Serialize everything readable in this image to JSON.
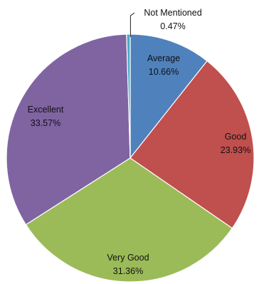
{
  "chart_data": {
    "type": "pie",
    "title": "",
    "colors": {
      "Average": "#4f81bd",
      "Good": "#c0504d",
      "Very Good": "#9bbb59",
      "Excellent": "#8064a2",
      "Not Mentioned": "#4bacc6"
    },
    "slices": [
      {
        "name": "Average",
        "value": 10.66,
        "label": "10.66%"
      },
      {
        "name": "Good",
        "value": 23.93,
        "label": "23.93%"
      },
      {
        "name": "Very Good",
        "value": 31.36,
        "label": "31.36%"
      },
      {
        "name": "Excellent",
        "value": 33.57,
        "label": "33.57%"
      },
      {
        "name": "Not Mentioned",
        "value": 0.47,
        "label": "0.47%"
      }
    ],
    "legend": "none",
    "label_style": "name and percentage inside slice"
  }
}
